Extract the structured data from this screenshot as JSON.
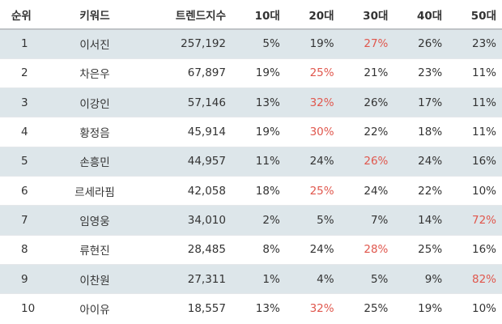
{
  "table": {
    "headers": [
      "순위",
      "키워드",
      "트렌드지수",
      "10대",
      "20대",
      "30대",
      "40대",
      "50대"
    ],
    "highlight_color": "#e0574d",
    "rows": [
      {
        "rank": "1",
        "keyword": "이서진",
        "trend": "257,192",
        "ages": [
          "5%",
          "19%",
          "27%",
          "26%",
          "23%"
        ],
        "highlight": 2
      },
      {
        "rank": "2",
        "keyword": "차은우",
        "trend": "67,897",
        "ages": [
          "19%",
          "25%",
          "21%",
          "23%",
          "11%"
        ],
        "highlight": 1
      },
      {
        "rank": "3",
        "keyword": "이강인",
        "trend": "57,146",
        "ages": [
          "13%",
          "32%",
          "26%",
          "17%",
          "11%"
        ],
        "highlight": 1
      },
      {
        "rank": "4",
        "keyword": "황정음",
        "trend": "45,914",
        "ages": [
          "19%",
          "30%",
          "22%",
          "18%",
          "11%"
        ],
        "highlight": 1
      },
      {
        "rank": "5",
        "keyword": "손흥민",
        "trend": "44,957",
        "ages": [
          "11%",
          "24%",
          "26%",
          "24%",
          "16%"
        ],
        "highlight": 2
      },
      {
        "rank": "6",
        "keyword": "르세라핌",
        "trend": "42,058",
        "ages": [
          "18%",
          "25%",
          "24%",
          "22%",
          "10%"
        ],
        "highlight": 1
      },
      {
        "rank": "7",
        "keyword": "임영웅",
        "trend": "34,010",
        "ages": [
          "2%",
          "5%",
          "7%",
          "14%",
          "72%"
        ],
        "highlight": 4
      },
      {
        "rank": "8",
        "keyword": "류현진",
        "trend": "28,485",
        "ages": [
          "8%",
          "24%",
          "28%",
          "25%",
          "16%"
        ],
        "highlight": 2
      },
      {
        "rank": "9",
        "keyword": "이찬원",
        "trend": "27,311",
        "ages": [
          "1%",
          "4%",
          "5%",
          "9%",
          "82%"
        ],
        "highlight": 4
      },
      {
        "rank": "10",
        "keyword": "아이유",
        "trend": "18,557",
        "ages": [
          "13%",
          "32%",
          "25%",
          "19%",
          "10%"
        ],
        "highlight": 1
      }
    ]
  }
}
